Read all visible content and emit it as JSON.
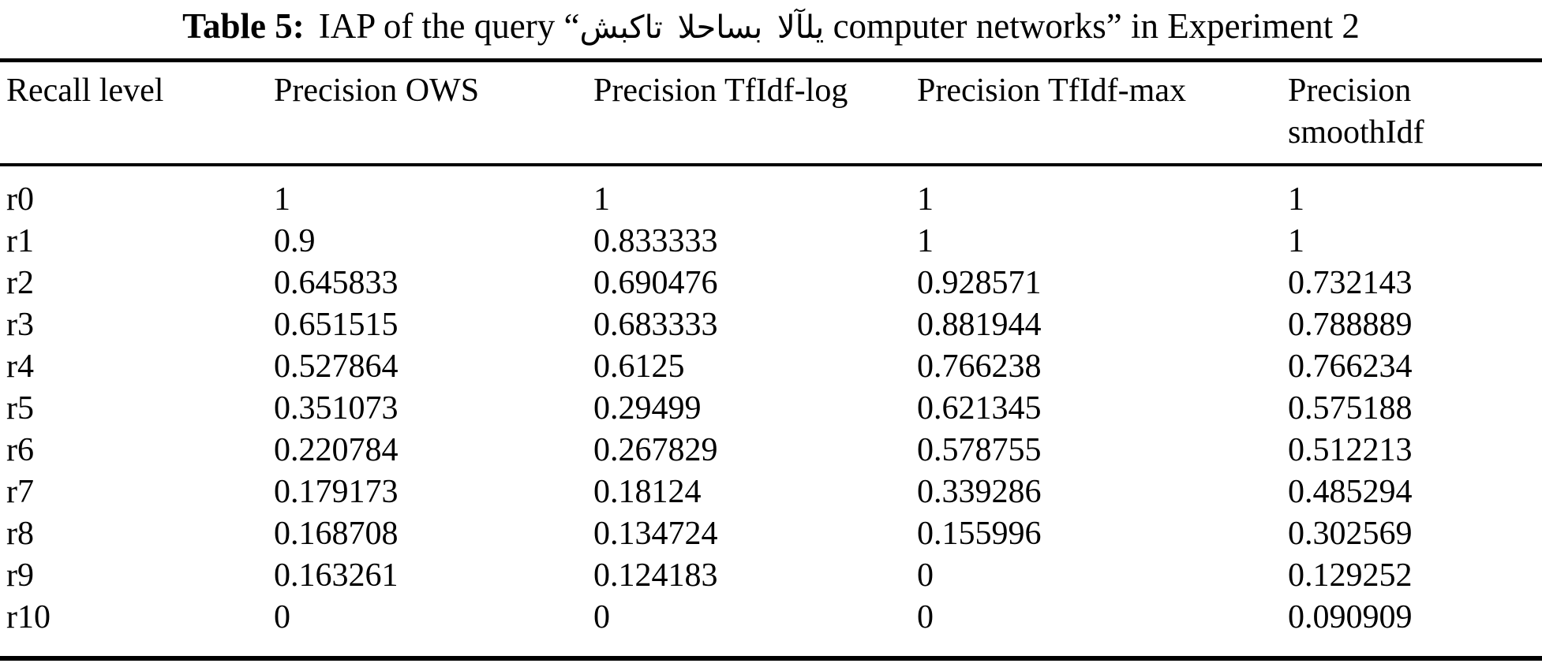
{
  "caption": {
    "label": "Table 5:",
    "before_arabic": "IAP of the query “",
    "arabic_query": "شبكات الحاسب الآلي",
    "after_arabic": " computer networks” in Experiment 2"
  },
  "table": {
    "headers": [
      "Recall level",
      "Precision OWS",
      "Precision TfIdf-log",
      "Precision TfIdf-max",
      "Precision smoothIdf"
    ],
    "rows": [
      [
        "r0",
        "1",
        "1",
        "1",
        "1"
      ],
      [
        "r1",
        "0.9",
        "0.833333",
        "1",
        "1"
      ],
      [
        "r2",
        "0.645833",
        "0.690476",
        "0.928571",
        "0.732143"
      ],
      [
        "r3",
        "0.651515",
        "0.683333",
        "0.881944",
        "0.788889"
      ],
      [
        "r4",
        "0.527864",
        "0.6125",
        "0.766238",
        "0.766234"
      ],
      [
        "r5",
        "0.351073",
        "0.29499",
        "0.621345",
        "0.575188"
      ],
      [
        "r6",
        "0.220784",
        "0.267829",
        "0.578755",
        "0.512213"
      ],
      [
        "r7",
        "0.179173",
        "0.18124",
        "0.339286",
        "0.485294"
      ],
      [
        "r8",
        "0.168708",
        "0.134724",
        "0.155996",
        "0.302569"
      ],
      [
        "r9",
        "0.163261",
        "0.124183",
        "0",
        "0.129252"
      ],
      [
        "r10",
        "0",
        "0",
        "0",
        "0.090909"
      ]
    ]
  }
}
